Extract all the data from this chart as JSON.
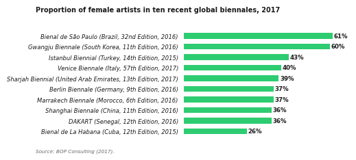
{
  "title": "Proportion of female artists in ten recent global biennales, 2017",
  "source": "Source: BOP Consulting (2017).",
  "categories": [
    "Bienal de São Paulo (Brazil, 32nd Edition, 2016)",
    "Gwangju Biennale (South Korea, 11th Edition, 2016)",
    "Istanbul Biennial (Turkey, 14th Edition, 2015)",
    "Venice Biennale (Italy, 57th Edition, 2017)",
    "Sharjah Biennial (United Arab Emirates, 13th Edition, 2017)",
    "Berlin Biennale (Germany, 9th Edition, 2016)",
    "Marrakech Biennale (Morocco, 6th Edition, 2016)",
    "Shanghai Biennale (China, 11th Edition, 2016)",
    "DAKART (Senegal, 12th Edition, 2016)",
    "Bienal de La Habana (Cuba, 12th Edition, 2015)"
  ],
  "values": [
    61,
    60,
    43,
    40,
    39,
    37,
    37,
    36,
    36,
    26
  ],
  "bar_color": "#2ecc71",
  "label_color": "#1a1a1a",
  "title_color": "#1a1a1a",
  "source_color": "#666666",
  "background_color": "#ffffff",
  "xlim": [
    0,
    68
  ],
  "title_fontsize": 7.0,
  "label_fontsize": 6.0,
  "value_fontsize": 6.2,
  "source_fontsize": 5.2,
  "bar_height": 0.55
}
